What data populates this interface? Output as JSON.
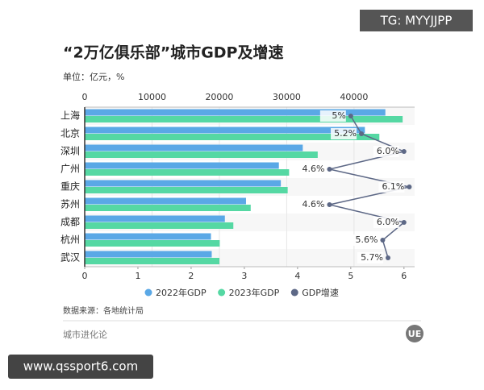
{
  "banner": "TG: MYYJJPP",
  "chart_data": {
    "type": "bar",
    "orientation": "horizontal",
    "title": "“2万亿俱乐部”城市GDP及增速",
    "subtitle": "单位：亿元，%",
    "source": "数据来源：各地统计局",
    "categories": [
      "上海",
      "北京",
      "深圳",
      "广州",
      "重庆",
      "苏州",
      "成都",
      "杭州",
      "武汉"
    ],
    "series": [
      {
        "name": "2022年GDP",
        "type": "bar",
        "axis": "x2",
        "color": "#5aa8e6",
        "values": [
          44653,
          41611,
          32388,
          28839,
          29129,
          23958,
          20818,
          18753,
          18866
        ]
      },
      {
        "name": "2023年GDP",
        "type": "bar",
        "axis": "x2",
        "color": "#55d8a3",
        "values": [
          47219,
          43761,
          34606,
          30356,
          30146,
          24653,
          22075,
          20059,
          20012
        ]
      },
      {
        "name": "GDP增速",
        "type": "line",
        "axis": "x",
        "color": "#5d6886",
        "values": [
          5,
          5.2,
          6.0,
          4.6,
          6.1,
          4.6,
          6.0,
          5.6,
          5.7
        ],
        "value_labels": [
          "5%",
          "5.2%",
          "6.0%",
          "4.6%",
          "6.1%",
          "4.6%",
          "6.0%",
          "5.6%",
          "5.7%"
        ]
      }
    ],
    "x2lim": [
      0,
      49000
    ],
    "x2ticks": [
      0,
      10000,
      20000,
      30000,
      40000
    ],
    "xlim": [
      0,
      6.2
    ],
    "xticks": [
      0,
      1,
      2,
      3,
      4,
      5,
      6
    ],
    "grid": true,
    "legend": "bottom"
  },
  "footer": "城市进化论",
  "logo": "UE",
  "url_banner": "www.qssport6.com"
}
